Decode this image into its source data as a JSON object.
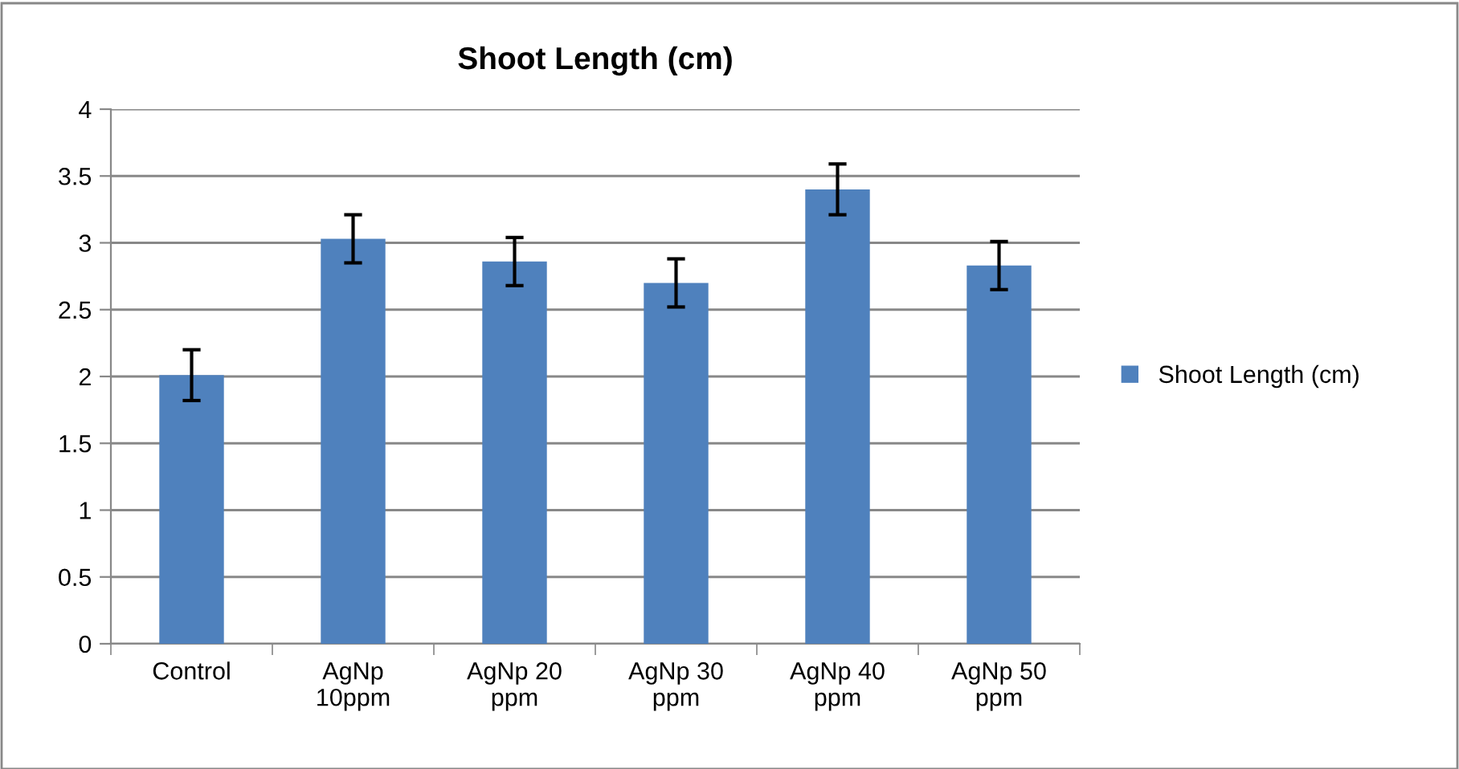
{
  "chart_data": {
    "type": "bar",
    "title": "Shoot Length (cm)",
    "categories": [
      "Control",
      "AgNp 10ppm",
      "AgNp 20 ppm",
      "AgNp 30 ppm",
      "AgNp 40 ppm",
      "AgNp 50 ppm"
    ],
    "series": [
      {
        "name": "Shoot Length (cm)",
        "color": "#4f81bd",
        "values": [
          2.01,
          3.03,
          2.86,
          2.7,
          3.4,
          2.83
        ],
        "errors": [
          0.19,
          0.18,
          0.18,
          0.18,
          0.19,
          0.18
        ]
      }
    ],
    "ylim": [
      0,
      4
    ],
    "yticks": [
      0,
      0.5,
      1,
      1.5,
      2,
      2.5,
      3,
      3.5,
      4
    ],
    "grid": "y",
    "legend": "right"
  }
}
